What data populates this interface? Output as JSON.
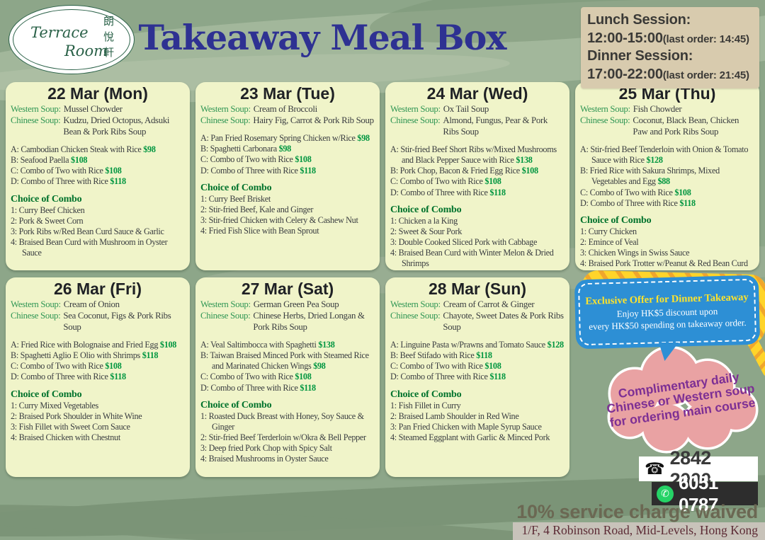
{
  "header": {
    "logo": {
      "name_top": "Terrace",
      "name_bottom": "Room",
      "chinese": "朗悅軒"
    },
    "title": "Takeaway Meal Box",
    "sessions": {
      "lunch_label": "Lunch Session:",
      "lunch_time": "12:00-15:00",
      "lunch_last_order": "(last order: 14:45)",
      "dinner_label": "Dinner Session:",
      "dinner_time": "17:00-22:00",
      "dinner_last_order": "(last order: 21:45)"
    }
  },
  "labels": {
    "western_soup": "Western Soup:",
    "chinese_soup": "Chinese Soup:",
    "choice_of_combo": "Choice of Combo"
  },
  "days": [
    {
      "title": "22 Mar (Mon)",
      "western_soup": "Mussel Chowder",
      "chinese_soup": "Kudzu, Dried Octopus, Adsuki Bean & Pork Ribs Soup",
      "items": [
        {
          "label": "A:",
          "name": "Cambodian Chicken Steak with Rice",
          "price": "$98"
        },
        {
          "label": "B:",
          "name": "Seafood Paella",
          "price": "$108"
        },
        {
          "label": "C:",
          "name": "Combo of Two with Rice",
          "price": "$108"
        },
        {
          "label": "D:",
          "name": "Combo of Three with Rice",
          "price": "$118"
        }
      ],
      "combos": [
        {
          "label": "1:",
          "name": "Curry Beef Chicken"
        },
        {
          "label": "2:",
          "name": "Pork & Sweet Corn"
        },
        {
          "label": "3:",
          "name": "Pork Ribs w/Red Bean Curd Sauce & Garlic"
        },
        {
          "label": "4:",
          "name": "Braised Bean Curd with Mushroom in Oyster Sauce"
        }
      ]
    },
    {
      "title": "23 Mar (Tue)",
      "western_soup": "Cream of Broccoli",
      "chinese_soup": "Hairy Fig, Carrot & Pork Rib Soup",
      "items": [
        {
          "label": "A:",
          "name": "Pan Fried Rosemary Spring Chicken w/Rice",
          "price": "$98"
        },
        {
          "label": "B:",
          "name": "Spaghetti Carbonara",
          "price": "$98"
        },
        {
          "label": "C:",
          "name": "Combo of Two with Rice",
          "price": "$108"
        },
        {
          "label": "D:",
          "name": "Combo of Three with Rice",
          "price": "$118"
        }
      ],
      "combos": [
        {
          "label": "1:",
          "name": "Curry Beef Brisket"
        },
        {
          "label": "2:",
          "name": "Stir-fried Beef, Kale and Ginger"
        },
        {
          "label": "3:",
          "name": "Stir-fried Chicken with Celery & Cashew Nut"
        },
        {
          "label": "4:",
          "name": "Fried Fish Slice with Bean Sprout"
        }
      ]
    },
    {
      "title": "24 Mar (Wed)",
      "western_soup": "Ox Tail Soup",
      "chinese_soup": "Almond, Fungus, Pear & Pork Ribs Soup",
      "items": [
        {
          "label": "A:",
          "name": "Stir-fried Beef Short Ribs w/Mixed Mushrooms and Black Pepper Sauce with Rice",
          "price": "$138"
        },
        {
          "label": "B:",
          "name": "Pork Chop, Bacon & Fried Egg Rice",
          "price": "$108"
        },
        {
          "label": "C:",
          "name": "Combo of Two with Rice",
          "price": "$108"
        },
        {
          "label": "D:",
          "name": "Combo of Three with Rice",
          "price": "$118"
        }
      ],
      "combos": [
        {
          "label": "1:",
          "name": "Chicken a la King"
        },
        {
          "label": "2:",
          "name": "Sweet & Sour Pork"
        },
        {
          "label": "3:",
          "name": "Double Cooked Sliced Pork with Cabbage"
        },
        {
          "label": "4:",
          "name": "Braised Bean Curd with Winter Melon & Dried Shrimps"
        }
      ]
    },
    {
      "title": "25 Mar (Thu)",
      "western_soup": "Fish Chowder",
      "chinese_soup": "Coconut, Black Bean, Chicken Paw and Pork Ribs Soup",
      "items": [
        {
          "label": "A:",
          "name": "Stir-fried Beef Tenderloin with Onion & Tomato Sauce with Rice",
          "price": "$128"
        },
        {
          "label": "B:",
          "name": "Fried Rice with Sakura Shrimps, Mixed Vegetables and Egg",
          "price": "$88"
        },
        {
          "label": "C:",
          "name": "Combo of Two with Rice",
          "price": "$108"
        },
        {
          "label": "D:",
          "name": "Combo of Three with Rice",
          "price": "$118"
        }
      ],
      "combos": [
        {
          "label": "1:",
          "name": "Curry Chicken"
        },
        {
          "label": "2:",
          "name": "Emince of Veal"
        },
        {
          "label": "3:",
          "name": "Chicken Wings in Swiss Sauce"
        },
        {
          "label": "4:",
          "name": "Braised Pork Trotter w/Peanut & Red Bean Curd"
        }
      ]
    },
    {
      "title": "26 Mar (Fri)",
      "western_soup": "Cream of Onion",
      "chinese_soup": "Sea Coconut, Figs & Pork Ribs Soup",
      "items": [
        {
          "label": "A:",
          "name": "Fried Rice with Bolognaise and Fried Egg",
          "price": "$108"
        },
        {
          "label": "B:",
          "name": "Spaghetti Aglio E Olio with Shrimps",
          "price": "$118"
        },
        {
          "label": "C:",
          "name": "Combo of Two with Rice",
          "price": "$108"
        },
        {
          "label": "D:",
          "name": "Combo of Three with Rice",
          "price": "$118"
        }
      ],
      "combos": [
        {
          "label": "1:",
          "name": "Curry Mixed Vegetables"
        },
        {
          "label": "2:",
          "name": "Braised Pork Shoulder in White Wine"
        },
        {
          "label": "3:",
          "name": "Fish Fillet with Sweet Corn Sauce"
        },
        {
          "label": "4:",
          "name": "Braised Chicken with Chestnut"
        }
      ]
    },
    {
      "title": "27 Mar (Sat)",
      "western_soup": "German Green Pea Soup",
      "chinese_soup": "Chinese Herbs, Dried Longan & Pork Ribs Soup",
      "items": [
        {
          "label": "A:",
          "name": "Veal Saltimbocca with Spaghetti",
          "price": "$138"
        },
        {
          "label": "B:",
          "name": "Taiwan Braised Minced Pork with Steamed Rice and Marinated Chicken Wings",
          "price": "$98"
        },
        {
          "label": "C:",
          "name": "Combo of Two with Rice",
          "price": "$108"
        },
        {
          "label": "D:",
          "name": "Combo of Three with Rice",
          "price": "$118"
        }
      ],
      "combos": [
        {
          "label": "1:",
          "name": "Roasted Duck Breast with Honey, Soy Sauce & Ginger"
        },
        {
          "label": "2:",
          "name": "Stir-fried Beef Terderloin w/Okra & Bell Pepper"
        },
        {
          "label": "3:",
          "name": "Deep fried Pork Chop with Spicy Salt"
        },
        {
          "label": "4:",
          "name": "Braised Mushrooms in Oyster Sauce"
        }
      ]
    },
    {
      "title": "28 Mar (Sun)",
      "western_soup": "Cream of Carrot & Ginger",
      "chinese_soup": "Chayote, Sweet Dates & Pork Ribs Soup",
      "items": [
        {
          "label": "A:",
          "name": "Linguine Pasta w/Prawns and Tomato Sauce",
          "price": "$128"
        },
        {
          "label": "B:",
          "name": "Beef Stifado with Rice",
          "price": "$118"
        },
        {
          "label": "C:",
          "name": "Combo of Two with Rice",
          "price": "$108"
        },
        {
          "label": "D:",
          "name": "Combo of Three with Rice",
          "price": "$118"
        }
      ],
      "combos": [
        {
          "label": "1:",
          "name": "Fish Fillet in Curry"
        },
        {
          "label": "2:",
          "name": "Braised Lamb Shoulder in Red Wine"
        },
        {
          "label": "3:",
          "name": "Pan Fried Chicken with Maple Syrup Sauce"
        },
        {
          "label": "4:",
          "name": "Steamed Eggplant with Garlic & Minced Pork"
        }
      ]
    }
  ],
  "offer_bubble": {
    "title": "Exclusive Offer for Dinner Takeaway",
    "body": "Enjoy HK$5 discount upon\nevery HK$50 spending on takeaway order."
  },
  "soup_cloud": {
    "text": "Complimentary daily\nChinese or Western soup\nfor ordering main course"
  },
  "contact": {
    "phone": "2842 2000",
    "whatsapp": "6051 0787"
  },
  "footer": {
    "service_note": "10% service charge waived",
    "address": "1/F, 4 Robinson Road, Mid-Levels, Hong Kong"
  },
  "colors": {
    "background_green": "#8da689",
    "card_background": "#f0f4c9",
    "title_blue": "#2e3192",
    "soup_label_green": "#2f9654",
    "price_green": "#009640",
    "combo_heading_green": "#00722c",
    "session_box_tan": "#d8cbae",
    "offer_blue": "#2d8fd5",
    "offer_yellow": "#ffd42a",
    "cloud_pink": "#e9a2a3",
    "cloud_text_purple": "#7d2f94",
    "whatsapp_green": "#25d366",
    "address_maroon": "#5c2b35"
  }
}
